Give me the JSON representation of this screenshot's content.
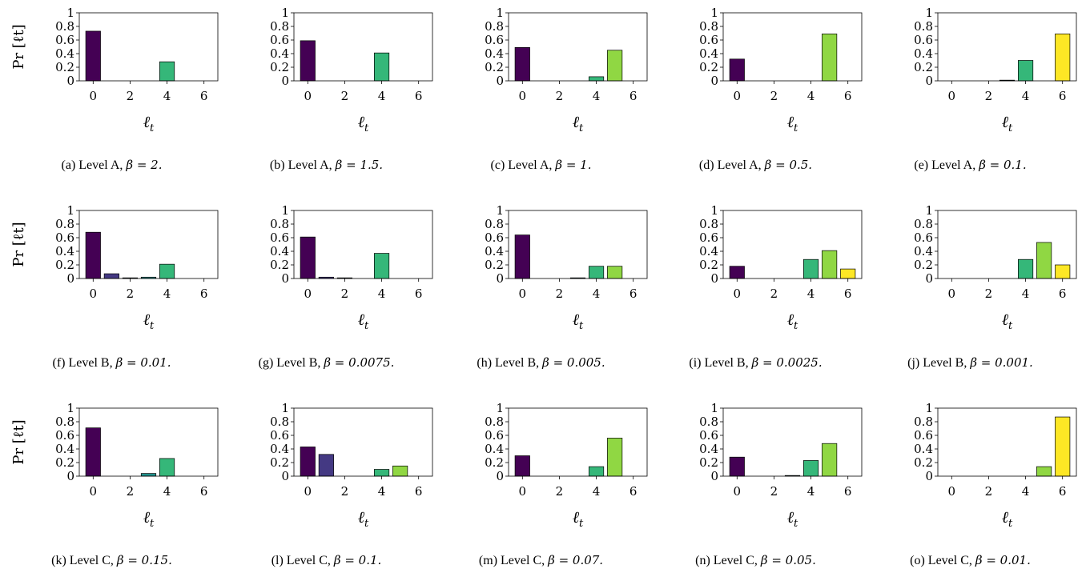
{
  "chart_data": [
    {
      "type": "bar",
      "id": "a",
      "caption": "(a)",
      "level": "Level A,",
      "beta": "β = 2.",
      "x": [
        0,
        1,
        2,
        3,
        4,
        5,
        6
      ],
      "values": [
        0.73,
        0,
        0,
        0,
        0.28,
        0,
        0
      ],
      "xticks": [
        0,
        2,
        4,
        6
      ],
      "yticks": [
        "0",
        "0.2",
        "0.4",
        "0.6",
        "0.8",
        "1"
      ],
      "ylim": [
        0,
        1
      ],
      "xlabel": "ℓ",
      "xlabel_sub": "t",
      "ylabel": "Pr [ℓt]"
    },
    {
      "type": "bar",
      "id": "b",
      "caption": "(b)",
      "level": "Level A,",
      "beta": "β = 1.5.",
      "x": [
        0,
        1,
        2,
        3,
        4,
        5,
        6
      ],
      "values": [
        0.59,
        0,
        0,
        0,
        0.41,
        0,
        0
      ],
      "xticks": [
        0,
        2,
        4,
        6
      ],
      "yticks": [
        "0",
        "0.2",
        "0.4",
        "0.6",
        "0.8",
        "1"
      ],
      "ylim": [
        0,
        1
      ],
      "xlabel": "ℓ",
      "xlabel_sub": "t",
      "ylabel": ""
    },
    {
      "type": "bar",
      "id": "c",
      "caption": "(c)",
      "level": "Level A,",
      "beta": "β = 1.",
      "x": [
        0,
        1,
        2,
        3,
        4,
        5,
        6
      ],
      "values": [
        0.49,
        0,
        0,
        0,
        0.06,
        0.45,
        0
      ],
      "xticks": [
        0,
        2,
        4,
        6
      ],
      "yticks": [
        "0",
        "0.2",
        "0.4",
        "0.6",
        "0.8",
        "1"
      ],
      "ylim": [
        0,
        1
      ],
      "xlabel": "ℓ",
      "xlabel_sub": "t",
      "ylabel": ""
    },
    {
      "type": "bar",
      "id": "d",
      "caption": "(d)",
      "level": "Level A,",
      "beta": "β = 0.5.",
      "x": [
        0,
        1,
        2,
        3,
        4,
        5,
        6
      ],
      "values": [
        0.32,
        0,
        0,
        0,
        0,
        0.69,
        0
      ],
      "xticks": [
        0,
        2,
        4,
        6
      ],
      "yticks": [
        "0",
        "0.2",
        "0.4",
        "0.6",
        "0.8",
        "1"
      ],
      "ylim": [
        0,
        1
      ],
      "xlabel": "ℓ",
      "xlabel_sub": "t",
      "ylabel": ""
    },
    {
      "type": "bar",
      "id": "e",
      "caption": "(e)",
      "level": "Level A,",
      "beta": "β = 0.1.",
      "x": [
        0,
        1,
        2,
        3,
        4,
        5,
        6
      ],
      "values": [
        0,
        0,
        0,
        0.01,
        0.3,
        0,
        0.69
      ],
      "xticks": [
        0,
        2,
        4,
        6
      ],
      "yticks": [
        "0",
        "0.2",
        "0.4",
        "0.6",
        "0.8",
        "1"
      ],
      "ylim": [
        0,
        1
      ],
      "xlabel": "ℓ",
      "xlabel_sub": "t",
      "ylabel": ""
    },
    {
      "type": "bar",
      "id": "f",
      "caption": "(f)",
      "level": "Level B,",
      "beta": "β = 0.01.",
      "x": [
        0,
        1,
        2,
        3,
        4,
        5,
        6
      ],
      "values": [
        0.68,
        0.07,
        0.01,
        0.02,
        0.21,
        0,
        0
      ],
      "xticks": [
        0,
        2,
        4,
        6
      ],
      "yticks": [
        "0",
        "0.2",
        "0.4",
        "0.6",
        "0.8",
        "1"
      ],
      "ylim": [
        0,
        1
      ],
      "xlabel": "ℓ",
      "xlabel_sub": "t",
      "ylabel": "Pr [ℓt]"
    },
    {
      "type": "bar",
      "id": "g",
      "caption": "(g)",
      "level": "Level B,",
      "beta": "β = 0.0075.",
      "x": [
        0,
        1,
        2,
        3,
        4,
        5,
        6
      ],
      "values": [
        0.61,
        0.02,
        0.01,
        0,
        0.37,
        0,
        0
      ],
      "xticks": [
        0,
        2,
        4,
        6
      ],
      "yticks": [
        "0",
        "0.2",
        "0.4",
        "0.6",
        "0.8",
        "1"
      ],
      "ylim": [
        0,
        1
      ],
      "xlabel": "ℓ",
      "xlabel_sub": "t",
      "ylabel": ""
    },
    {
      "type": "bar",
      "id": "h",
      "caption": "(h)",
      "level": "Level B,",
      "beta": "β = 0.005.",
      "x": [
        0,
        1,
        2,
        3,
        4,
        5,
        6
      ],
      "values": [
        0.64,
        0,
        0,
        0.01,
        0.18,
        0.18,
        0
      ],
      "xticks": [
        0,
        2,
        4,
        6
      ],
      "yticks": [
        "0",
        "0.2",
        "0.4",
        "0.6",
        "0.8",
        "1"
      ],
      "ylim": [
        0,
        1
      ],
      "xlabel": "ℓ",
      "xlabel_sub": "t",
      "ylabel": ""
    },
    {
      "type": "bar",
      "id": "i",
      "caption": "(i)",
      "level": "Level B,",
      "beta": "β = 0.0025.",
      "x": [
        0,
        1,
        2,
        3,
        4,
        5,
        6
      ],
      "values": [
        0.18,
        0,
        0,
        0,
        0.28,
        0.41,
        0.14
      ],
      "xticks": [
        0,
        2,
        4,
        6
      ],
      "yticks": [
        "0",
        "0.2",
        "0.4",
        "0.6",
        "0.8",
        "1"
      ],
      "ylim": [
        0,
        1
      ],
      "xlabel": "ℓ",
      "xlabel_sub": "t",
      "ylabel": ""
    },
    {
      "type": "bar",
      "id": "j",
      "caption": "(j)",
      "level": "Level B,",
      "beta": "β = 0.001.",
      "x": [
        0,
        1,
        2,
        3,
        4,
        5,
        6
      ],
      "values": [
        0,
        0,
        0,
        0,
        0.28,
        0.53,
        0.2
      ],
      "xticks": [
        0,
        2,
        4,
        6
      ],
      "yticks": [
        "0",
        "0.2",
        "0.4",
        "0.6",
        "0.8",
        "1"
      ],
      "ylim": [
        0,
        1
      ],
      "xlabel": "ℓ",
      "xlabel_sub": "t",
      "ylabel": ""
    },
    {
      "type": "bar",
      "id": "k",
      "caption": "(k)",
      "level": "Level C,",
      "beta": "β = 0.15.",
      "x": [
        0,
        1,
        2,
        3,
        4,
        5,
        6
      ],
      "values": [
        0.71,
        0,
        0,
        0.04,
        0.26,
        0,
        0
      ],
      "xticks": [
        0,
        2,
        4,
        6
      ],
      "yticks": [
        "0",
        "0.2",
        "0.4",
        "0.6",
        "0.8",
        "1"
      ],
      "ylim": [
        0,
        1
      ],
      "xlabel": "ℓ",
      "xlabel_sub": "t",
      "ylabel": "Pr [ℓt]"
    },
    {
      "type": "bar",
      "id": "l",
      "caption": "(l)",
      "level": "Level C,",
      "beta": "β = 0.1.",
      "x": [
        0,
        1,
        2,
        3,
        4,
        5,
        6
      ],
      "values": [
        0.43,
        0.32,
        0,
        0,
        0.1,
        0.15,
        0
      ],
      "xticks": [
        0,
        2,
        4,
        6
      ],
      "yticks": [
        "0",
        "0.2",
        "0.4",
        "0.6",
        "0.8",
        "1"
      ],
      "ylim": [
        0,
        1
      ],
      "xlabel": "ℓ",
      "xlabel_sub": "t",
      "ylabel": ""
    },
    {
      "type": "bar",
      "id": "m",
      "caption": "(m)",
      "level": "Level C,",
      "beta": "β = 0.07.",
      "x": [
        0,
        1,
        2,
        3,
        4,
        5,
        6
      ],
      "values": [
        0.3,
        0,
        0,
        0,
        0.14,
        0.56,
        0
      ],
      "xticks": [
        0,
        2,
        4,
        6
      ],
      "yticks": [
        "0",
        "0.2",
        "0.4",
        "0.6",
        "0.8",
        "1"
      ],
      "ylim": [
        0,
        1
      ],
      "xlabel": "ℓ",
      "xlabel_sub": "t",
      "ylabel": ""
    },
    {
      "type": "bar",
      "id": "n",
      "caption": "(n)",
      "level": "Level C,",
      "beta": "β = 0.05.",
      "x": [
        0,
        1,
        2,
        3,
        4,
        5,
        6
      ],
      "values": [
        0.28,
        0,
        0,
        0.01,
        0.23,
        0.48,
        0
      ],
      "xticks": [
        0,
        2,
        4,
        6
      ],
      "yticks": [
        "0",
        "0.2",
        "0.4",
        "0.6",
        "0.8",
        "1"
      ],
      "ylim": [
        0,
        1
      ],
      "xlabel": "ℓ",
      "xlabel_sub": "t",
      "ylabel": ""
    },
    {
      "type": "bar",
      "id": "o",
      "caption": "(o)",
      "level": "Level C,",
      "beta": "β = 0.01.",
      "x": [
        0,
        1,
        2,
        3,
        4,
        5,
        6
      ],
      "values": [
        0,
        0,
        0,
        0,
        0,
        0.14,
        0.87
      ],
      "xticks": [
        0,
        2,
        4,
        6
      ],
      "yticks": [
        "0",
        "0.2",
        "0.4",
        "0.6",
        "0.8",
        "1"
      ],
      "ylim": [
        0,
        1
      ],
      "xlabel": "ℓ",
      "xlabel_sub": "t",
      "ylabel": ""
    }
  ],
  "colors": [
    "#440154",
    "#443983",
    "#31688e",
    "#21918c",
    "#35b779",
    "#90d743",
    "#fde725"
  ]
}
